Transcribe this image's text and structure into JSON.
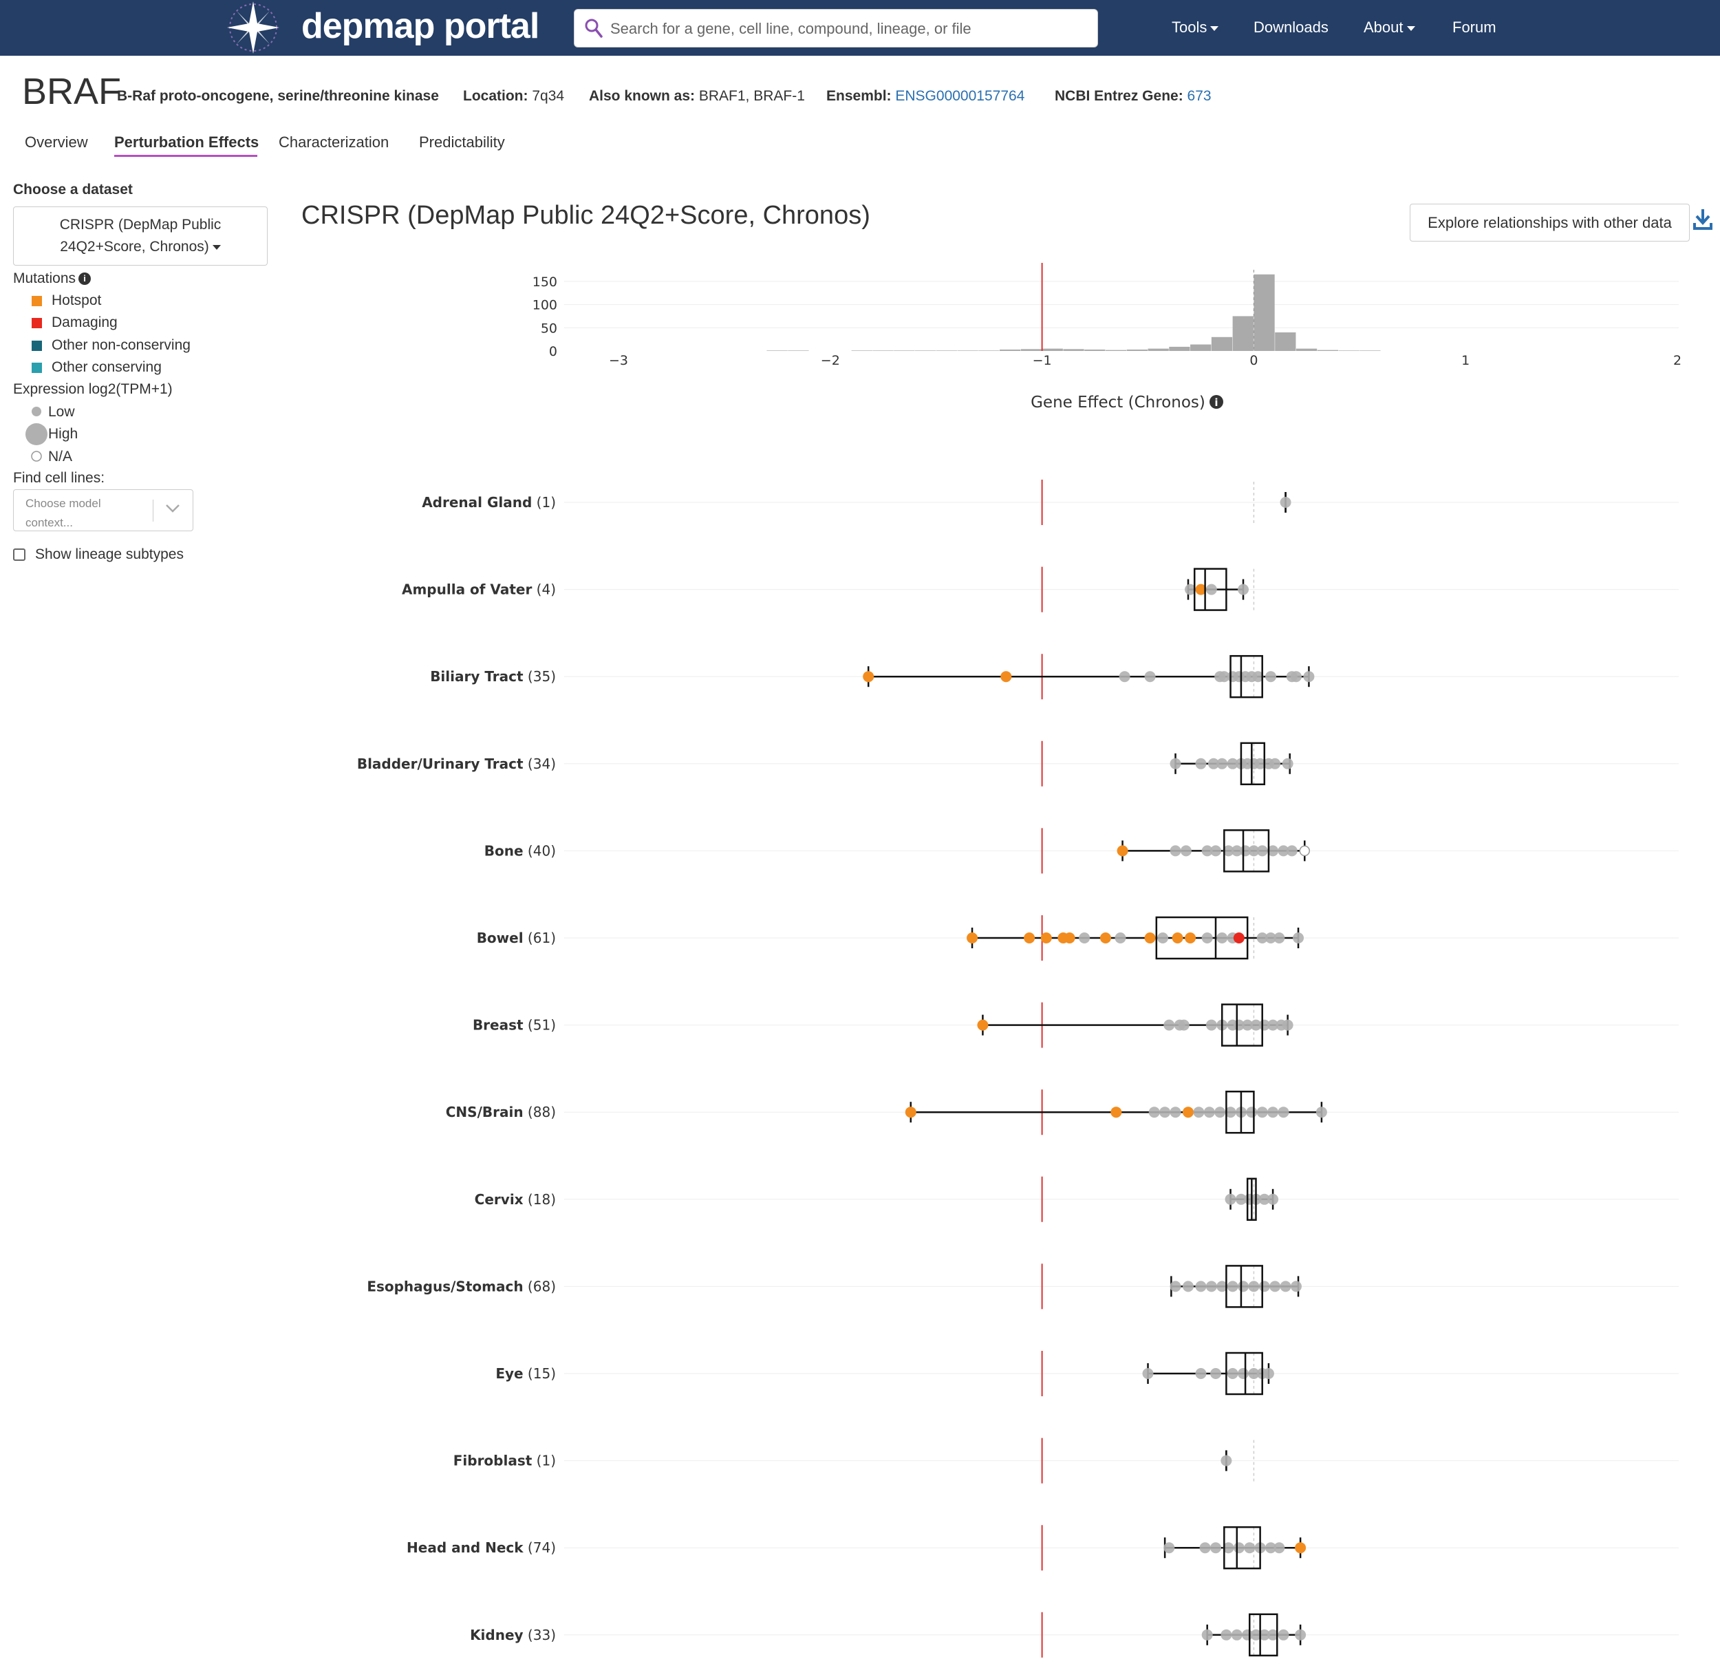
{
  "nav": {
    "brand": "depmap portal",
    "search_placeholder": "Search for a gene, cell line, compound, lineage, or file",
    "tools": "Tools",
    "downloads": "Downloads",
    "about": "About",
    "forum": "Forum"
  },
  "gene": {
    "symbol": "BRAF",
    "name": "B-Raf proto-oncogene, serine/threonine kinase",
    "location_label": "Location:",
    "location": "7q34",
    "aka_label": "Also known as:",
    "aka": "BRAF1, BRAF-1",
    "ensembl_label": "Ensembl:",
    "ensembl": "ENSG00000157764",
    "entrez_label": "NCBI Entrez Gene:",
    "entrez": "673"
  },
  "tabs": [
    "Overview",
    "Perturbation Effects",
    "Characterization",
    "Predictability"
  ],
  "sidebar": {
    "choose_dataset": "Choose a dataset",
    "dataset_line1": "CRISPR (DepMap Public",
    "dataset_line2": "24Q2+Score, Chronos)",
    "mutations": "Mutations",
    "mutation_types": [
      {
        "label": "Hotspot",
        "color": "#f28c1e"
      },
      {
        "label": "Damaging",
        "color": "#e8281e"
      },
      {
        "label": "Other non-conserving",
        "color": "#18667a"
      },
      {
        "label": "Other conserving",
        "color": "#2a9fae"
      }
    ],
    "expression": "Expression log2(TPM+1)",
    "expr_low": "Low",
    "expr_high": "High",
    "expr_na": "N/A",
    "find_cell_lines": "Find cell lines:",
    "find_placeholder": "Choose model context...",
    "show_subtypes": "Show lineage subtypes"
  },
  "main": {
    "title": "CRISPR (DepMap Public 24Q2+Score, Chronos)",
    "explore_button": "Explore relationships with other data"
  },
  "chart_data": {
    "type": "box",
    "xlabel": "Gene Effect (Chronos)",
    "xlim": [
      -3,
      2
    ],
    "x_ticks": [
      -3,
      -2,
      -1,
      0,
      1,
      2
    ],
    "x_tick_labels": [
      "−3",
      "−2",
      "−1",
      "0",
      "1",
      "2"
    ],
    "reference_line": -1,
    "histogram": {
      "y_ticks": [
        0,
        50,
        100,
        150
      ],
      "ylim": [
        0,
        175
      ],
      "bin_width": 0.1,
      "bins": [
        {
          "x0": -2.3,
          "count": 1
        },
        {
          "x0": -2.2,
          "count": 1
        },
        {
          "x0": -1.9,
          "count": 1
        },
        {
          "x0": -1.8,
          "count": 1
        },
        {
          "x0": -1.7,
          "count": 1
        },
        {
          "x0": -1.6,
          "count": 1
        },
        {
          "x0": -1.5,
          "count": 1
        },
        {
          "x0": -1.4,
          "count": 1
        },
        {
          "x0": -1.3,
          "count": 1
        },
        {
          "x0": -1.2,
          "count": 3
        },
        {
          "x0": -1.1,
          "count": 4
        },
        {
          "x0": -1.0,
          "count": 5
        },
        {
          "x0": -0.9,
          "count": 4
        },
        {
          "x0": -0.8,
          "count": 3
        },
        {
          "x0": -0.7,
          "count": 2
        },
        {
          "x0": -0.6,
          "count": 3
        },
        {
          "x0": -0.5,
          "count": 5
        },
        {
          "x0": -0.4,
          "count": 9
        },
        {
          "x0": -0.3,
          "count": 14
        },
        {
          "x0": -0.2,
          "count": 30
        },
        {
          "x0": -0.1,
          "count": 75
        },
        {
          "x0": 0.0,
          "count": 165
        },
        {
          "x0": 0.1,
          "count": 40
        },
        {
          "x0": 0.2,
          "count": 5
        },
        {
          "x0": 0.3,
          "count": 2
        },
        {
          "x0": 0.4,
          "count": 1
        },
        {
          "x0": 0.5,
          "count": 1
        }
      ]
    },
    "lineages": [
      {
        "name": "Adrenal Gland",
        "count": "(1)",
        "min": 0.15,
        "q1": 0.15,
        "median": 0.15,
        "q3": 0.15,
        "max": 0.15,
        "points": [
          {
            "x": 0.15,
            "c": "grey"
          }
        ]
      },
      {
        "name": "Ampulla of Vater",
        "count": "(4)",
        "min": -0.31,
        "q1": -0.28,
        "median": -0.23,
        "q3": -0.13,
        "max": -0.05,
        "points": [
          {
            "x": -0.3,
            "c": "grey"
          },
          {
            "x": -0.25,
            "c": "orange"
          },
          {
            "x": -0.2,
            "c": "grey"
          },
          {
            "x": -0.05,
            "c": "grey"
          }
        ]
      },
      {
        "name": "Biliary Tract",
        "count": "(35)",
        "min": -1.82,
        "q1": -0.11,
        "median": -0.06,
        "q3": 0.04,
        "max": 0.26,
        "points": [
          {
            "x": -1.82,
            "c": "orange"
          },
          {
            "x": -1.17,
            "c": "orange"
          },
          {
            "x": -0.61,
            "c": "grey"
          },
          {
            "x": -0.49,
            "c": "grey"
          },
          {
            "x": -0.16,
            "c": "grey"
          },
          {
            "x": -0.14,
            "c": "grey"
          },
          {
            "x": -0.1,
            "c": "grey"
          },
          {
            "x": -0.07,
            "c": "grey"
          },
          {
            "x": -0.04,
            "c": "grey"
          },
          {
            "x": -0.01,
            "c": "grey"
          },
          {
            "x": 0.02,
            "c": "grey"
          },
          {
            "x": 0.08,
            "c": "grey"
          },
          {
            "x": 0.18,
            "c": "grey"
          },
          {
            "x": 0.2,
            "c": "grey"
          },
          {
            "x": 0.26,
            "c": "grey"
          }
        ]
      },
      {
        "name": "Bladder/Urinary Tract",
        "count": "(34)",
        "min": -0.37,
        "q1": -0.06,
        "median": -0.01,
        "q3": 0.05,
        "max": 0.17,
        "points": [
          {
            "x": -0.37,
            "c": "grey"
          },
          {
            "x": -0.25,
            "c": "grey"
          },
          {
            "x": -0.19,
            "c": "grey"
          },
          {
            "x": -0.15,
            "c": "grey"
          },
          {
            "x": -0.1,
            "c": "grey"
          },
          {
            "x": -0.06,
            "c": "grey"
          },
          {
            "x": -0.03,
            "c": "grey"
          },
          {
            "x": 0.0,
            "c": "grey"
          },
          {
            "x": 0.03,
            "c": "grey"
          },
          {
            "x": 0.07,
            "c": "grey"
          },
          {
            "x": 0.1,
            "c": "grey"
          },
          {
            "x": 0.16,
            "c": "grey"
          }
        ]
      },
      {
        "name": "Bone",
        "count": "(40)",
        "min": -0.62,
        "q1": -0.14,
        "median": -0.05,
        "q3": 0.07,
        "max": 0.24,
        "points": [
          {
            "x": -0.62,
            "c": "orange"
          },
          {
            "x": -0.37,
            "c": "grey"
          },
          {
            "x": -0.32,
            "c": "grey"
          },
          {
            "x": -0.22,
            "c": "grey"
          },
          {
            "x": -0.18,
            "c": "grey"
          },
          {
            "x": -0.12,
            "c": "grey"
          },
          {
            "x": -0.08,
            "c": "grey"
          },
          {
            "x": -0.04,
            "c": "grey"
          },
          {
            "x": 0.0,
            "c": "grey"
          },
          {
            "x": 0.04,
            "c": "grey"
          },
          {
            "x": 0.09,
            "c": "grey"
          },
          {
            "x": 0.14,
            "c": "grey"
          },
          {
            "x": 0.18,
            "c": "grey"
          },
          {
            "x": 0.24,
            "c": "na"
          }
        ]
      },
      {
        "name": "Bowel",
        "count": "(61)",
        "min": -1.33,
        "q1": -0.46,
        "median": -0.18,
        "q3": -0.03,
        "max": 0.21,
        "points": [
          {
            "x": -1.33,
            "c": "orange"
          },
          {
            "x": -1.06,
            "c": "orange"
          },
          {
            "x": -0.98,
            "c": "orange"
          },
          {
            "x": -0.9,
            "c": "orange"
          },
          {
            "x": -0.87,
            "c": "orange"
          },
          {
            "x": -0.8,
            "c": "grey"
          },
          {
            "x": -0.7,
            "c": "orange"
          },
          {
            "x": -0.63,
            "c": "grey"
          },
          {
            "x": -0.49,
            "c": "orange"
          },
          {
            "x": -0.43,
            "c": "grey"
          },
          {
            "x": -0.36,
            "c": "orange"
          },
          {
            "x": -0.3,
            "c": "orange"
          },
          {
            "x": -0.22,
            "c": "grey"
          },
          {
            "x": -0.15,
            "c": "grey"
          },
          {
            "x": -0.1,
            "c": "grey"
          },
          {
            "x": -0.07,
            "c": "red"
          },
          {
            "x": 0.04,
            "c": "grey"
          },
          {
            "x": 0.08,
            "c": "grey"
          },
          {
            "x": 0.12,
            "c": "grey"
          },
          {
            "x": 0.21,
            "c": "grey"
          }
        ]
      },
      {
        "name": "Breast",
        "count": "(51)",
        "min": -1.28,
        "q1": -0.15,
        "median": -0.08,
        "q3": 0.04,
        "max": 0.16,
        "points": [
          {
            "x": -1.28,
            "c": "orange"
          },
          {
            "x": -0.4,
            "c": "grey"
          },
          {
            "x": -0.35,
            "c": "grey"
          },
          {
            "x": -0.33,
            "c": "grey"
          },
          {
            "x": -0.2,
            "c": "grey"
          },
          {
            "x": -0.15,
            "c": "grey"
          },
          {
            "x": -0.1,
            "c": "grey"
          },
          {
            "x": -0.07,
            "c": "grey"
          },
          {
            "x": -0.03,
            "c": "grey"
          },
          {
            "x": 0.01,
            "c": "grey"
          },
          {
            "x": 0.05,
            "c": "grey"
          },
          {
            "x": 0.09,
            "c": "grey"
          },
          {
            "x": 0.13,
            "c": "grey"
          },
          {
            "x": 0.16,
            "c": "grey"
          }
        ]
      },
      {
        "name": "CNS/Brain",
        "count": "(88)",
        "min": -1.62,
        "q1": -0.13,
        "median": -0.06,
        "q3": 0.0,
        "max": 0.32,
        "points": [
          {
            "x": -1.62,
            "c": "orange"
          },
          {
            "x": -0.65,
            "c": "orange"
          },
          {
            "x": -0.47,
            "c": "grey"
          },
          {
            "x": -0.42,
            "c": "grey"
          },
          {
            "x": -0.37,
            "c": "grey"
          },
          {
            "x": -0.31,
            "c": "orange"
          },
          {
            "x": -0.26,
            "c": "grey"
          },
          {
            "x": -0.21,
            "c": "grey"
          },
          {
            "x": -0.16,
            "c": "grey"
          },
          {
            "x": -0.11,
            "c": "grey"
          },
          {
            "x": -0.06,
            "c": "grey"
          },
          {
            "x": -0.01,
            "c": "grey"
          },
          {
            "x": 0.04,
            "c": "grey"
          },
          {
            "x": 0.09,
            "c": "grey"
          },
          {
            "x": 0.14,
            "c": "grey"
          },
          {
            "x": 0.32,
            "c": "grey"
          }
        ]
      },
      {
        "name": "Cervix",
        "count": "(18)",
        "min": -0.11,
        "q1": -0.03,
        "median": -0.01,
        "q3": 0.01,
        "max": 0.09,
        "points": [
          {
            "x": -0.11,
            "c": "grey"
          },
          {
            "x": -0.06,
            "c": "grey"
          },
          {
            "x": -0.02,
            "c": "grey"
          },
          {
            "x": 0.01,
            "c": "grey"
          },
          {
            "x": 0.05,
            "c": "grey"
          },
          {
            "x": 0.09,
            "c": "grey"
          }
        ]
      },
      {
        "name": "Esophagus/Stomach",
        "count": "(68)",
        "min": -0.39,
        "q1": -0.13,
        "median": -0.06,
        "q3": 0.04,
        "max": 0.21,
        "points": [
          {
            "x": -0.37,
            "c": "grey"
          },
          {
            "x": -0.31,
            "c": "grey"
          },
          {
            "x": -0.25,
            "c": "grey"
          },
          {
            "x": -0.2,
            "c": "grey"
          },
          {
            "x": -0.15,
            "c": "grey"
          },
          {
            "x": -0.1,
            "c": "grey"
          },
          {
            "x": -0.05,
            "c": "grey"
          },
          {
            "x": 0.0,
            "c": "grey"
          },
          {
            "x": 0.05,
            "c": "grey"
          },
          {
            "x": 0.1,
            "c": "grey"
          },
          {
            "x": 0.15,
            "c": "grey"
          },
          {
            "x": 0.2,
            "c": "grey"
          }
        ]
      },
      {
        "name": "Eye",
        "count": "(15)",
        "min": -0.5,
        "q1": -0.13,
        "median": -0.04,
        "q3": 0.04,
        "max": 0.07,
        "points": [
          {
            "x": -0.5,
            "c": "grey"
          },
          {
            "x": -0.25,
            "c": "grey"
          },
          {
            "x": -0.18,
            "c": "grey"
          },
          {
            "x": -0.1,
            "c": "grey"
          },
          {
            "x": -0.05,
            "c": "grey"
          },
          {
            "x": 0.0,
            "c": "grey"
          },
          {
            "x": 0.04,
            "c": "grey"
          },
          {
            "x": 0.07,
            "c": "grey"
          }
        ]
      },
      {
        "name": "Fibroblast",
        "count": "(1)",
        "min": -0.13,
        "q1": -0.13,
        "median": -0.13,
        "q3": -0.13,
        "max": -0.13,
        "points": [
          {
            "x": -0.13,
            "c": "grey"
          }
        ]
      },
      {
        "name": "Head and Neck",
        "count": "(74)",
        "min": -0.42,
        "q1": -0.14,
        "median": -0.08,
        "q3": 0.03,
        "max": 0.22,
        "points": [
          {
            "x": -0.4,
            "c": "grey"
          },
          {
            "x": -0.23,
            "c": "grey"
          },
          {
            "x": -0.18,
            "c": "grey"
          },
          {
            "x": -0.12,
            "c": "grey"
          },
          {
            "x": -0.07,
            "c": "grey"
          },
          {
            "x": -0.02,
            "c": "grey"
          },
          {
            "x": 0.03,
            "c": "grey"
          },
          {
            "x": 0.08,
            "c": "grey"
          },
          {
            "x": 0.12,
            "c": "grey"
          },
          {
            "x": 0.22,
            "c": "orange"
          }
        ]
      },
      {
        "name": "Kidney",
        "count": "(33)",
        "min": -0.22,
        "q1": -0.02,
        "median": 0.03,
        "q3": 0.11,
        "max": 0.22,
        "points": [
          {
            "x": -0.22,
            "c": "grey"
          },
          {
            "x": -0.13,
            "c": "grey"
          },
          {
            "x": -0.08,
            "c": "grey"
          },
          {
            "x": -0.03,
            "c": "grey"
          },
          {
            "x": 0.01,
            "c": "grey"
          },
          {
            "x": 0.05,
            "c": "grey"
          },
          {
            "x": 0.09,
            "c": "grey"
          },
          {
            "x": 0.14,
            "c": "grey"
          },
          {
            "x": 0.22,
            "c": "grey"
          }
        ]
      }
    ],
    "point_colors": {
      "grey": "#b0b0b0",
      "orange": "#f28c1e",
      "red": "#e8281e",
      "na": "#ffffff"
    }
  }
}
